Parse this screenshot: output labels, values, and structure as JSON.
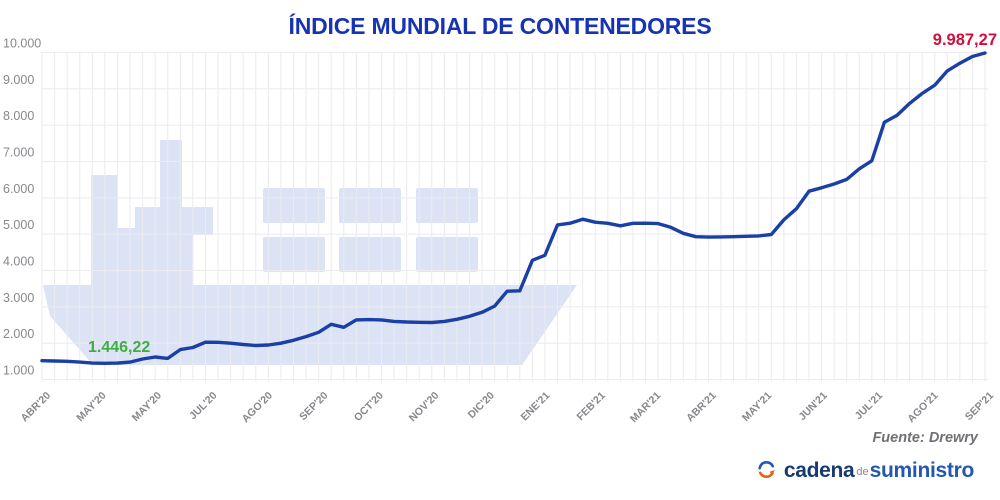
{
  "header": {
    "title": "ÍNDICE MUNDIAL DE CONTENEDORES"
  },
  "source": {
    "label": "Fuente: Drewry"
  },
  "logo": {
    "part1": "cadena",
    "part2": "de",
    "part3": "suministro"
  },
  "colors": {
    "title": "#1733b2",
    "line": "#1a40a6",
    "green_label": "#3fad42",
    "red_label": "#d20f3c",
    "watermark": "#dce3f5",
    "grid": "#ebebf0",
    "axis_text": "#87878d",
    "source_text": "#717175",
    "logo_navy": "#173a75",
    "logo_blue": "#2457b0",
    "logo_orange": "#e8601c",
    "logo_gray": "#8a8a8a"
  },
  "chart_data": {
    "type": "line",
    "title": "ÍNDICE MUNDIAL DE CONTENEDORES",
    "source": "Fuente: Drewry",
    "frequency": "weekly",
    "grid": true,
    "legend": "none",
    "ylim": [
      1000,
      10000
    ],
    "y_tick_labels": [
      "1.000",
      "2.000",
      "3.000",
      "4.000",
      "5.000",
      "6.000",
      "7.000",
      "8.000",
      "9.000",
      "10.000"
    ],
    "x_tick_labels": [
      "ABR'20",
      "MAY'20",
      "MAY'20",
      "JUL'20",
      "AGO'20",
      "SEP'20",
      "OCT'20",
      "NOV'20",
      "DIC'20",
      "ENE'21",
      "FEB'21",
      "MAR'21",
      "ABR'21",
      "MAY'21",
      "JUN'21",
      "JUL'21",
      "AGO'21",
      "SEP'21"
    ],
    "values": [
      1517,
      1510,
      1500,
      1480,
      1452,
      1446,
      1452,
      1480,
      1565,
      1620,
      1581,
      1823,
      1880,
      2027,
      2025,
      2000,
      1963,
      1935,
      1950,
      2000,
      2080,
      2180,
      2300,
      2519,
      2436,
      2639,
      2650,
      2640,
      2600,
      2583,
      2575,
      2570,
      2600,
      2658,
      2740,
      2850,
      3020,
      3429,
      3440,
      4280,
      4419,
      5254,
      5301,
      5412,
      5330,
      5300,
      5230,
      5300,
      5301,
      5290,
      5190,
      5023,
      4931,
      4920,
      4925,
      4930,
      4940,
      4953,
      4990,
      5393,
      5700,
      6183,
      6275,
      6380,
      6506,
      6800,
      7018,
      8083,
      8270,
      8600,
      8871,
      9100,
      9493,
      9705,
      9891,
      9987.27
    ],
    "annotations": [
      {
        "text": "1.446,22",
        "value": 1446.22,
        "color_role": "green",
        "position": "near_start_min"
      },
      {
        "text": "9.987,27",
        "value": 9987.27,
        "color_role": "red",
        "position": "line_end"
      }
    ]
  }
}
